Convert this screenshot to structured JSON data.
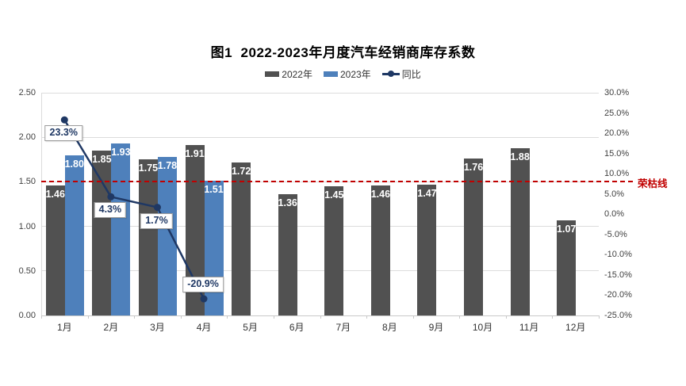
{
  "chart_data": {
    "type": "combo-bar-line",
    "title": "图1  2022-2023年月度汽车经销商库存系数",
    "categories": [
      "1月",
      "2月",
      "3月",
      "4月",
      "5月",
      "6月",
      "7月",
      "8月",
      "9月",
      "10月",
      "11月",
      "12月"
    ],
    "series": [
      {
        "name": "2022年",
        "type": "bar",
        "color": "#515151",
        "values": [
          1.46,
          1.85,
          1.75,
          1.91,
          1.72,
          1.36,
          1.45,
          1.46,
          1.47,
          1.76,
          1.88,
          1.07
        ]
      },
      {
        "name": "2023年",
        "type": "bar",
        "color": "#4e80bb",
        "values": [
          1.8,
          1.93,
          1.78,
          1.51,
          null,
          null,
          null,
          null,
          null,
          null,
          null,
          null
        ]
      },
      {
        "name": "同比",
        "type": "line",
        "color": "#1f3864",
        "axis": "right",
        "values": [
          23.3,
          4.3,
          1.7,
          -20.9,
          null,
          null,
          null,
          null,
          null,
          null,
          null,
          null
        ],
        "point_labels": [
          "23.3%",
          "4.3%",
          "1.7%",
          "-20.9%"
        ],
        "label_placement": [
          "below",
          "below",
          "below",
          "above"
        ]
      }
    ],
    "left_axis": {
      "min": 0,
      "max": 2.5,
      "step": 0.5,
      "tick_labels": [
        "2.50",
        "2.00",
        "1.50",
        "1.00",
        "0.50",
        "0.00"
      ]
    },
    "right_axis": {
      "min": -25,
      "max": 30,
      "step": 5,
      "tick_labels": [
        "30.0%",
        "25.0%",
        "20.0%",
        "15.0%",
        "10.0%",
        "5.0%",
        "0.0%",
        "-5.0%",
        "-10.0%",
        "-15.0%",
        "-20.0%",
        "-25.0%"
      ]
    },
    "reference_line": {
      "value": 1.5,
      "label": "荣枯线",
      "color": "#c00000"
    },
    "grid": true,
    "legend_position": "top-center",
    "colors": {
      "grid": "#dcdcdc",
      "axis_line": "#c8c8c8",
      "axis_text": "#404040",
      "bar_label": "#ffffff"
    }
  }
}
